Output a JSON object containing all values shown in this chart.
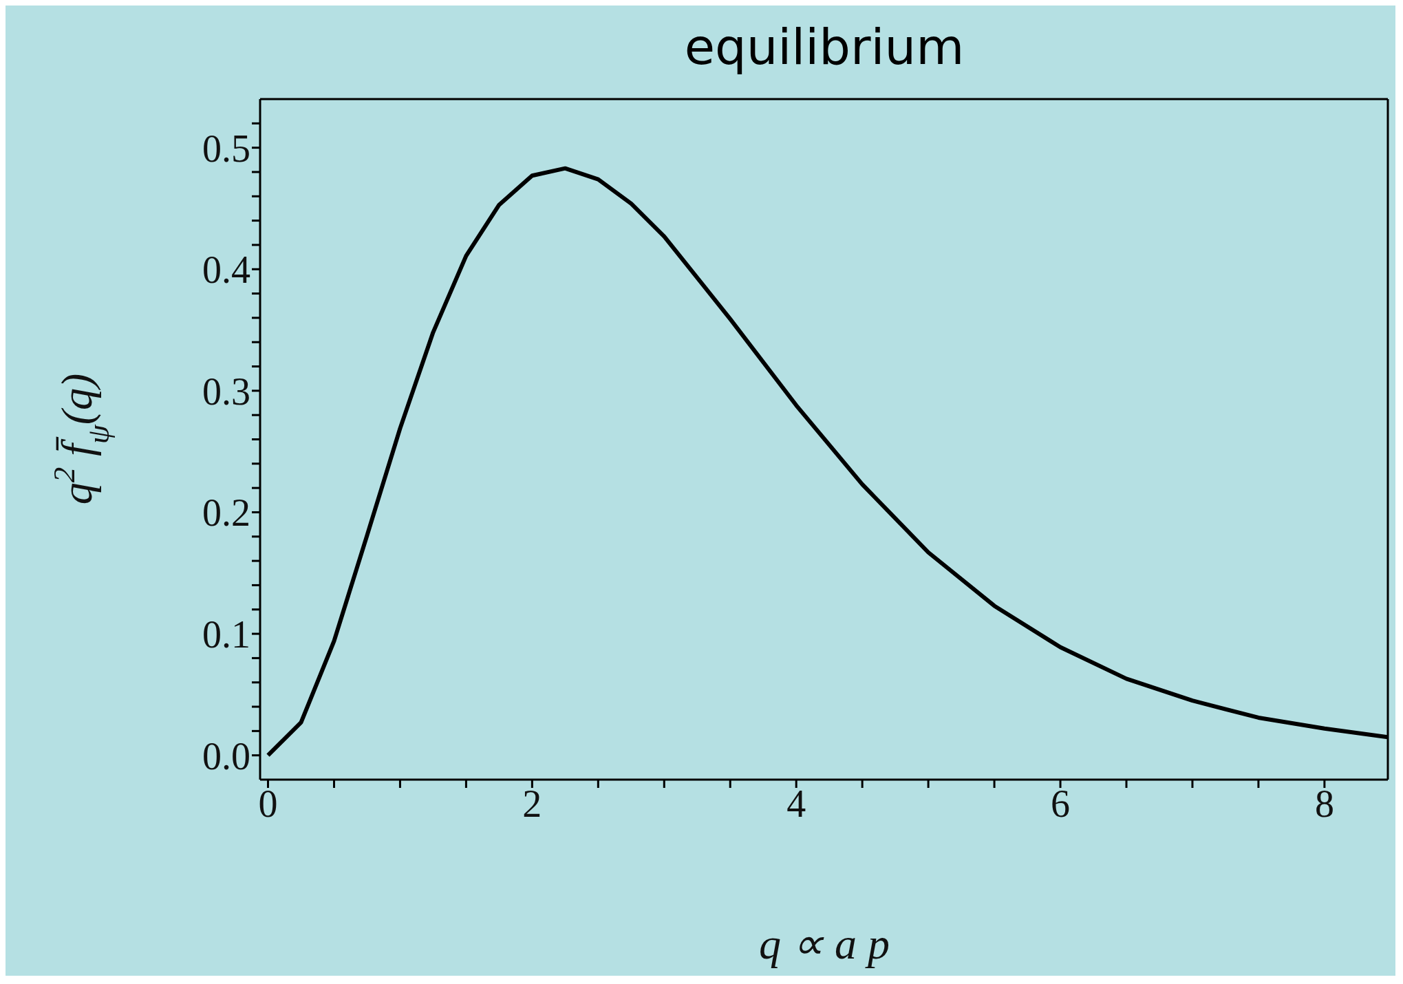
{
  "chart_data": {
    "type": "line",
    "title": "equilibrium",
    "xlabel": "q ∝ a p",
    "ylabel": "q$^{2}$ f̄$_{ψ}$(q)",
    "x": [
      0,
      0.25,
      0.5,
      0.75,
      1,
      1.25,
      1.5,
      1.75,
      2,
      2.25,
      2.5,
      2.75,
      3,
      3.5,
      4,
      4.5,
      5,
      5.5,
      6,
      6.5,
      7,
      7.5,
      8,
      8.48
    ],
    "series": [
      {
        "color": "#000000",
        "values": [
          0,
          0.027,
          0.094,
          0.181,
          0.269,
          0.348,
          0.411,
          0.453,
          0.477,
          0.483,
          0.474,
          0.454,
          0.427,
          0.359,
          0.288,
          0.223,
          0.167,
          0.123,
          0.089,
          0.063,
          0.045,
          0.031,
          0.022,
          0.015
        ]
      }
    ],
    "xlim": [
      -0.06,
      8.48
    ],
    "ylim": [
      -0.02,
      0.54
    ],
    "xticks": [
      0,
      {
        "value": 0.5,
        "label": null
      },
      {
        "value": 1,
        "label": null
      },
      {
        "value": 1.5,
        "label": null
      },
      2,
      {
        "value": 2.5,
        "label": null
      },
      {
        "value": 3,
        "label": null
      },
      {
        "value": 3.5,
        "label": null
      },
      4,
      {
        "value": 4.5,
        "label": null
      },
      {
        "value": 5,
        "label": null
      },
      {
        "value": 5.5,
        "label": null
      },
      6,
      {
        "value": 6.5,
        "label": null
      },
      {
        "value": 7,
        "label": null
      },
      {
        "value": 7.5,
        "label": null
      },
      8
    ],
    "yticks": [
      {
        "value": 0,
        "label": "0.0"
      },
      {
        "value": 0.02,
        "label": null
      },
      {
        "value": 0.04,
        "label": null
      },
      {
        "value": 0.06,
        "label": null
      },
      {
        "value": 0.08,
        "label": null
      },
      0.1,
      {
        "value": 0.12,
        "label": null
      },
      {
        "value": 0.14,
        "label": null
      },
      {
        "value": 0.16,
        "label": null
      },
      {
        "value": 0.18,
        "label": null
      },
      0.2,
      {
        "value": 0.22,
        "label": null
      },
      {
        "value": 0.24,
        "label": null
      },
      {
        "value": 0.26,
        "label": null
      },
      {
        "value": 0.28,
        "label": null
      },
      0.3,
      {
        "value": 0.32,
        "label": null
      },
      {
        "value": 0.34,
        "label": null
      },
      {
        "value": 0.36,
        "label": null
      },
      {
        "value": 0.38,
        "label": null
      },
      0.4,
      {
        "value": 0.42,
        "label": null
      },
      {
        "value": 0.44,
        "label": null
      },
      {
        "value": 0.46,
        "label": null
      },
      {
        "value": 0.48,
        "label": null
      },
      0.5,
      {
        "value": 0.52,
        "label": null
      }
    ],
    "grid": false,
    "legend": false,
    "marker": "none",
    "line_style": "solid"
  }
}
